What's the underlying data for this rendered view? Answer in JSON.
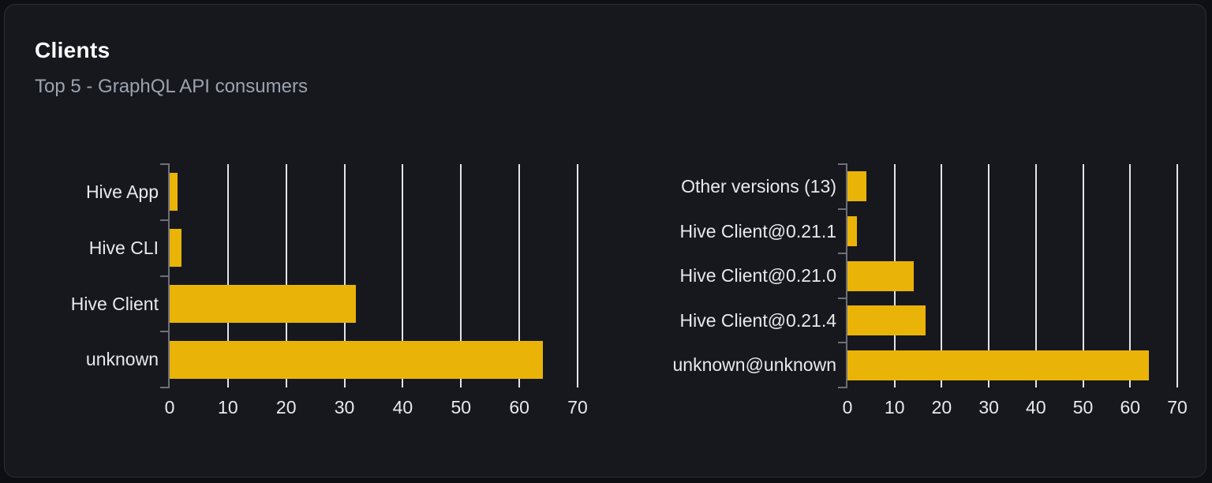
{
  "card": {
    "title": "Clients",
    "subtitle": "Top 5 - GraphQL API consumers"
  },
  "colors": {
    "page_bg": "#0e0f12",
    "card_bg": "#16181d",
    "card_border": "#2b2e35",
    "title": "#ffffff",
    "subtitle": "#9ca3af",
    "label": "#e8e9eb",
    "axis": "#6e7079",
    "grid": "#e2e5ec",
    "bar": "#eab308"
  },
  "charts": [
    {
      "name": "clients",
      "chart_data": {
        "type": "bar",
        "orientation": "horizontal",
        "title": "",
        "xlabel": "",
        "ylabel": "",
        "categories": [
          "Hive App",
          "Hive CLI",
          "Hive Client",
          "unknown"
        ],
        "values": [
          1.4,
          2,
          32,
          64
        ],
        "x_ticks": [
          0,
          10,
          20,
          30,
          40,
          50,
          60,
          70
        ],
        "xlim": [
          0,
          70
        ],
        "grid": true,
        "legend": false
      }
    },
    {
      "name": "client-versions",
      "chart_data": {
        "type": "bar",
        "orientation": "horizontal",
        "title": "",
        "xlabel": "",
        "ylabel": "",
        "categories": [
          "Other versions (13)",
          "Hive Client@0.21.1",
          "Hive Client@0.21.0",
          "Hive Client@0.21.4",
          "unknown@unknown"
        ],
        "values": [
          4,
          2,
          14,
          16.5,
          64
        ],
        "x_ticks": [
          0,
          10,
          20,
          30,
          40,
          50,
          60,
          70
        ],
        "xlim": [
          0,
          70
        ],
        "grid": true,
        "legend": false
      }
    }
  ]
}
